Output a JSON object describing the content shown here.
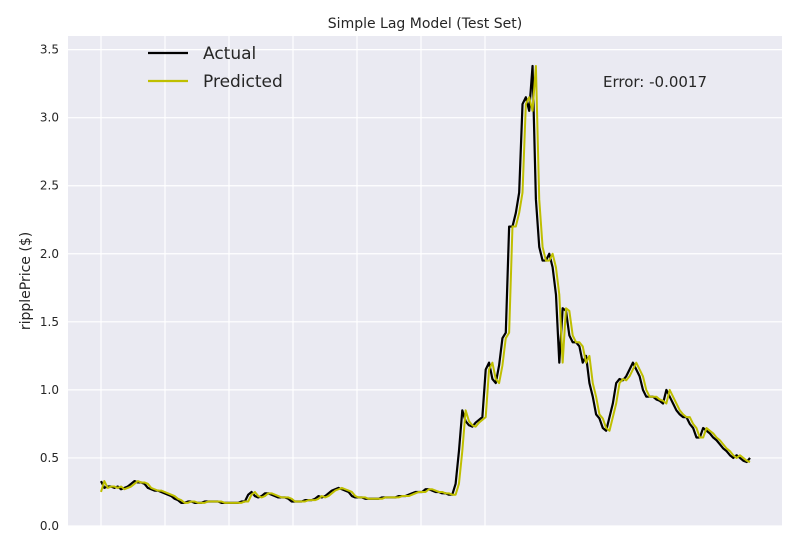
{
  "chart_data": {
    "type": "line",
    "title": "Simple Lag Model (Test Set)",
    "xlabel": "",
    "ylabel": "ripplePrice ($)",
    "ylim": [
      0,
      3.5
    ],
    "y_ticks": [
      "0.0",
      "0.5",
      "1.0",
      "1.5",
      "2.0",
      "2.5",
      "3.0",
      "3.5"
    ],
    "x_ticks_labeled": false,
    "grid": true,
    "legend_position": "top-left",
    "annotation": "Error: -0.0017",
    "colors": {
      "background": "#eaeaf2",
      "grid": "#ffffff",
      "actual": "#000000",
      "predicted": "#bfbf00"
    },
    "series": [
      {
        "name": "Actual",
        "values": [
          0.33,
          0.28,
          0.29,
          0.29,
          0.28,
          0.29,
          0.27,
          0.28,
          0.29,
          0.31,
          0.33,
          0.32,
          0.32,
          0.31,
          0.28,
          0.27,
          0.26,
          0.26,
          0.25,
          0.24,
          0.23,
          0.22,
          0.2,
          0.19,
          0.17,
          0.17,
          0.18,
          0.18,
          0.17,
          0.17,
          0.17,
          0.18,
          0.18,
          0.18,
          0.18,
          0.18,
          0.17,
          0.17,
          0.17,
          0.17,
          0.17,
          0.17,
          0.18,
          0.18,
          0.23,
          0.25,
          0.22,
          0.21,
          0.22,
          0.24,
          0.24,
          0.23,
          0.22,
          0.21,
          0.21,
          0.21,
          0.2,
          0.18,
          0.18,
          0.18,
          0.18,
          0.19,
          0.19,
          0.19,
          0.2,
          0.22,
          0.21,
          0.22,
          0.24,
          0.26,
          0.27,
          0.28,
          0.27,
          0.26,
          0.25,
          0.22,
          0.21,
          0.21,
          0.21,
          0.2,
          0.2,
          0.2,
          0.2,
          0.2,
          0.21,
          0.21,
          0.21,
          0.21,
          0.21,
          0.22,
          0.22,
          0.22,
          0.23,
          0.24,
          0.25,
          0.25,
          0.25,
          0.27,
          0.27,
          0.26,
          0.25,
          0.25,
          0.24,
          0.24,
          0.23,
          0.23,
          0.31,
          0.55,
          0.85,
          0.77,
          0.74,
          0.73,
          0.76,
          0.78,
          0.8,
          1.15,
          1.2,
          1.08,
          1.05,
          1.18,
          1.38,
          1.42,
          2.2,
          2.2,
          2.3,
          2.45,
          3.1,
          3.15,
          3.05,
          3.38,
          2.4,
          2.05,
          1.95,
          1.95,
          2.0,
          1.9,
          1.7,
          1.2,
          1.6,
          1.58,
          1.4,
          1.35,
          1.35,
          1.32,
          1.2,
          1.25,
          1.05,
          0.95,
          0.82,
          0.79,
          0.72,
          0.7,
          0.8,
          0.9,
          1.05,
          1.08,
          1.07,
          1.1,
          1.15,
          1.2,
          1.15,
          1.1,
          1.0,
          0.95,
          0.95,
          0.95,
          0.93,
          0.92,
          0.9,
          1.0,
          0.95,
          0.9,
          0.85,
          0.82,
          0.8,
          0.8,
          0.75,
          0.72,
          0.65,
          0.65,
          0.72,
          0.7,
          0.68,
          0.65,
          0.63,
          0.6,
          0.57,
          0.55,
          0.52,
          0.5,
          0.52,
          0.5,
          0.48,
          0.47,
          0.5
        ]
      },
      {
        "name": "Predicted",
        "values": [
          0.25,
          0.33,
          0.28,
          0.29,
          0.29,
          0.28,
          0.29,
          0.27,
          0.28,
          0.29,
          0.31,
          0.33,
          0.32,
          0.32,
          0.31,
          0.28,
          0.27,
          0.26,
          0.26,
          0.25,
          0.24,
          0.23,
          0.22,
          0.2,
          0.19,
          0.17,
          0.17,
          0.18,
          0.18,
          0.17,
          0.17,
          0.17,
          0.18,
          0.18,
          0.18,
          0.18,
          0.18,
          0.17,
          0.17,
          0.17,
          0.17,
          0.17,
          0.17,
          0.18,
          0.18,
          0.23,
          0.25,
          0.22,
          0.21,
          0.22,
          0.24,
          0.24,
          0.23,
          0.22,
          0.21,
          0.21,
          0.21,
          0.2,
          0.18,
          0.18,
          0.18,
          0.18,
          0.19,
          0.19,
          0.19,
          0.2,
          0.22,
          0.21,
          0.22,
          0.24,
          0.26,
          0.27,
          0.28,
          0.27,
          0.26,
          0.25,
          0.22,
          0.21,
          0.21,
          0.21,
          0.2,
          0.2,
          0.2,
          0.2,
          0.2,
          0.21,
          0.21,
          0.21,
          0.21,
          0.21,
          0.22,
          0.22,
          0.22,
          0.23,
          0.24,
          0.25,
          0.25,
          0.25,
          0.27,
          0.27,
          0.26,
          0.25,
          0.25,
          0.24,
          0.24,
          0.23,
          0.23,
          0.31,
          0.55,
          0.85,
          0.77,
          0.74,
          0.73,
          0.76,
          0.78,
          0.8,
          1.15,
          1.2,
          1.08,
          1.05,
          1.18,
          1.38,
          1.42,
          2.2,
          2.2,
          2.3,
          2.45,
          3.1,
          3.15,
          3.05,
          3.38,
          2.4,
          2.05,
          1.95,
          1.95,
          2.0,
          1.9,
          1.7,
          1.2,
          1.6,
          1.58,
          1.4,
          1.35,
          1.35,
          1.32,
          1.2,
          1.25,
          1.05,
          0.95,
          0.82,
          0.79,
          0.72,
          0.7,
          0.8,
          0.9,
          1.05,
          1.08,
          1.07,
          1.1,
          1.15,
          1.2,
          1.15,
          1.1,
          1.0,
          0.95,
          0.95,
          0.95,
          0.93,
          0.92,
          0.9,
          1.0,
          0.95,
          0.9,
          0.85,
          0.82,
          0.8,
          0.8,
          0.75,
          0.72,
          0.65,
          0.65,
          0.72,
          0.7,
          0.68,
          0.65,
          0.63,
          0.6,
          0.57,
          0.55,
          0.52,
          0.5,
          0.52,
          0.5,
          0.48,
          0.47
        ]
      }
    ]
  }
}
